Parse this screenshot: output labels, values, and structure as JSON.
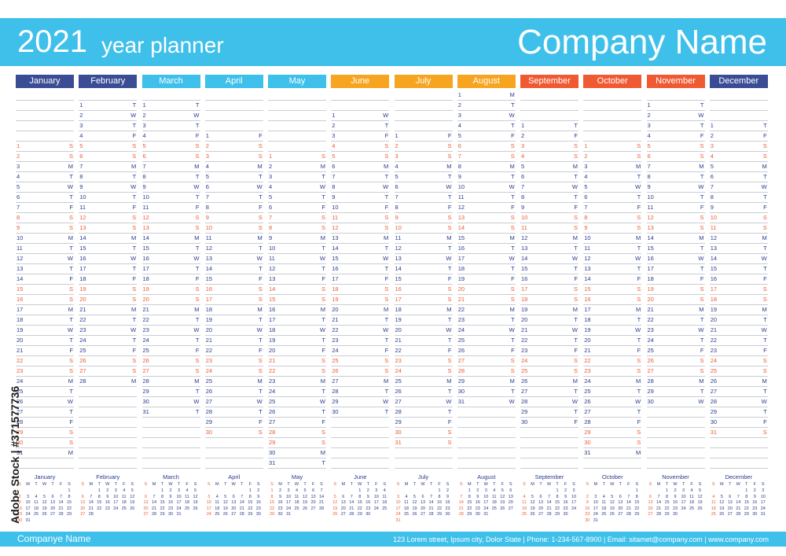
{
  "header": {
    "year": "2021",
    "subtitle": "year planner",
    "company": "Company Name"
  },
  "footer": {
    "company": "Companye Name",
    "contact": "123 Lorem street, Ipsum city, Dolor State  |  Phone: 1-234-567-8900  |  Email: sitamet@company.com  |  www.company.com"
  },
  "watermark": {
    "text": "Adobe Stock | #371577736"
  },
  "colors": {
    "header": "#3ec0ea",
    "weekday_text": "#2b3a8c",
    "weekend_text": "#f05a32",
    "rule": "#c9cdd3"
  },
  "calendar": {
    "year": 2021,
    "first_weekday": 5,
    "weekday_letters": [
      "M",
      "T",
      "W",
      "T",
      "F",
      "S",
      "S"
    ],
    "mini_weekday_letters": [
      "S",
      "M",
      "T",
      "W",
      "T",
      "F",
      "S"
    ],
    "months": [
      {
        "name": "January",
        "days": 31,
        "color": "#3a4c94"
      },
      {
        "name": "February",
        "days": 28,
        "color": "#3a4c94"
      },
      {
        "name": "March",
        "days": 31,
        "color": "#3ec0ea"
      },
      {
        "name": "April",
        "days": 30,
        "color": "#3ec0ea"
      },
      {
        "name": "May",
        "days": 31,
        "color": "#3ec0ea"
      },
      {
        "name": "June",
        "days": 30,
        "color": "#f7a520"
      },
      {
        "name": "July",
        "days": 31,
        "color": "#f7a520"
      },
      {
        "name": "August",
        "days": 31,
        "color": "#f7a520"
      },
      {
        "name": "September",
        "days": 30,
        "color": "#f05a32"
      },
      {
        "name": "October",
        "days": 31,
        "color": "#f05a32"
      },
      {
        "name": "November",
        "days": 30,
        "color": "#f05a32"
      },
      {
        "name": "December",
        "days": 31,
        "color": "#3a4c94"
      }
    ]
  }
}
